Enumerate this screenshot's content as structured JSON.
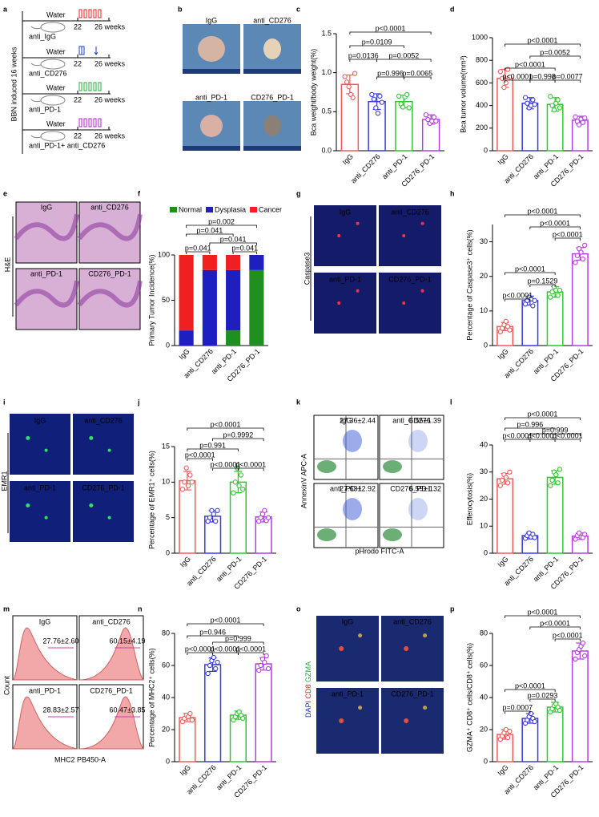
{
  "panel_labels": [
    "a",
    "b",
    "c",
    "d",
    "e",
    "f",
    "g",
    "h",
    "i",
    "j",
    "k",
    "l",
    "m",
    "n",
    "o",
    "p"
  ],
  "panel_a": {
    "ylabel": "BBN induced 16 weeks",
    "rows": [
      {
        "water": "Water",
        "start": "22",
        "end": "26 weeks",
        "treatment": "anti_IgG"
      },
      {
        "water": "Water",
        "start": "22",
        "end": "26 weeks",
        "treatment": "anti_CD276"
      },
      {
        "water": "Water",
        "start": "22",
        "end": "26 weeks",
        "treatment": "anti_PD-1"
      },
      {
        "water": "Water",
        "start": "22",
        "end": "26 weeks",
        "treatment": "anti_PD-1+ anti_CD276"
      }
    ]
  },
  "panel_b": {
    "groups": [
      "IgG",
      "anti_CD276",
      "anti_PD-1",
      "CD276_PD-1"
    ]
  },
  "panel_e": {
    "groups": [
      "IgG",
      "anti_CD276",
      "anti_PD-1",
      "CD276_PD-1"
    ],
    "stain": "H&E"
  },
  "panel_g": {
    "groups": [
      "IgG",
      "anti_CD276",
      "anti_PD-1",
      "CD276_PD-1"
    ],
    "stain": "Caspase3"
  },
  "panel_i": {
    "groups": [
      "IgG",
      "anti_CD276",
      "anti_PD-1",
      "CD276_PD-1"
    ],
    "stain": "EMR1"
  },
  "panel_k": {
    "groups": [
      "IgG",
      "anti_CD276",
      "anti_PD-1",
      "CD276_PD-1"
    ],
    "percentages": [
      "27.36±2.44",
      "6.55±1.39",
      "27.63±2.92",
      "6.59±1.32"
    ],
    "ylabel": "AnnexinV APC-A",
    "xlabel": "pHrodo FITC-A"
  },
  "panel_m": {
    "groups": [
      "IgG",
      "anti_CD276",
      "anti_PD-1",
      "CD276_PD-1"
    ],
    "percentages": [
      "27.76±2.60",
      "60.15±4.19",
      "28.83±2.57",
      "60.47±3.85"
    ],
    "ylabel": "Count",
    "xlabel": "MHC2 PB450-A"
  },
  "panel_o": {
    "groups": [
      "IgG",
      "anti_CD276",
      "anti_PD-1",
      "CD276_PD-1"
    ],
    "stains": [
      "DAPI",
      "CD8",
      "GZMA"
    ]
  },
  "chart_data": [
    {
      "type": "bar",
      "ylabel": "Bca weight/body weight(%)",
      "categories": [
        "IgG",
        "anti_CD276",
        "anti_PD-1",
        "CD276_PD-1"
      ],
      "values": [
        0.85,
        0.63,
        0.63,
        0.4
      ],
      "errors": [
        0.12,
        0.1,
        0.08,
        0.06
      ],
      "points": [
        [
          0.95,
          0.88,
          0.82,
          0.72,
          0.68,
          0.99
        ],
        [
          0.72,
          0.66,
          0.55,
          0.48,
          0.7,
          0.62
        ],
        [
          0.7,
          0.6,
          0.56,
          0.69,
          0.72,
          0.55
        ],
        [
          0.46,
          0.4,
          0.35,
          0.38,
          0.43,
          0.38
        ]
      ],
      "colors": [
        "#f05a5a",
        "#3a3adf",
        "#2fc62f",
        "#b43de0"
      ],
      "ylim": [
        0,
        1.5
      ],
      "yticks": [
        {
          "value": 0,
          "label": "0.0"
        },
        0.5,
        {
          "value": 1,
          "label": "1.0"
        },
        1.5
      ],
      "annotations": [
        "p=0.0136",
        "p=0.996",
        "p=0.0065",
        "p=0.0109",
        "p=0.0052",
        "p<0.0001"
      ]
    },
    {
      "type": "bar",
      "ylabel": "Bca tumor volume(mm³)",
      "categories": [
        "IgG",
        "anti_CD276",
        "anti_PD-1",
        "CD276_PD-1"
      ],
      "values": [
        640,
        420,
        410,
        270
      ],
      "errors": [
        80,
        50,
        60,
        35
      ],
      "points": [
        [
          700,
          640,
          560,
          600,
          720,
          650
        ],
        [
          470,
          420,
          380,
          400,
          450,
          410
        ],
        [
          480,
          400,
          360,
          420,
          450,
          380
        ],
        [
          300,
          260,
          230,
          280,
          250,
          290
        ]
      ],
      "colors": [
        "#f05a5a",
        "#3a3adf",
        "#2fc62f",
        "#b43de0"
      ],
      "ylim": [
        0,
        1000
      ],
      "yticks": [
        0,
        200,
        400,
        600,
        800,
        1000
      ],
      "annotations": [
        "p<0.0001",
        "p=0.998",
        "p=0.0077",
        "p<0.0001",
        "p=0.0052",
        "p<0.0001"
      ]
    },
    {
      "type": "stacked-bar",
      "ylabel": "Primary Tumor Incidence(%)",
      "categories": [
        "IgG",
        "anti_CD276",
        "anti_PD-1",
        "CD276_PD-1"
      ],
      "series": [
        {
          "name": "Normal",
          "color": "#1f8f1f",
          "values": [
            0,
            0,
            16.7,
            83.3
          ]
        },
        {
          "name": "Dysplasia",
          "color": "#1f1fbf",
          "values": [
            16.7,
            83.3,
            66.6,
            16.7
          ]
        },
        {
          "name": "Cancer",
          "color": "#f02020",
          "values": [
            83.3,
            16.7,
            16.7,
            0
          ]
        }
      ],
      "ylim": [
        0,
        100
      ],
      "yticks": [
        0,
        50,
        100
      ],
      "annotations": [
        "p=0.002",
        "p=0.041",
        "p=0.041",
        "p=0.041",
        "p=0.041"
      ]
    },
    {
      "type": "bar",
      "ylabel": "Percentage of Caspase3⁺ cells(%)",
      "categories": [
        "IgG",
        "anti_CD276",
        "anti_PD-1",
        "CD276_PD-1"
      ],
      "values": [
        5.5,
        13,
        15.5,
        26.5
      ],
      "errors": [
        1.2,
        1.3,
        1.5,
        1.8
      ],
      "points": [
        [
          4,
          5,
          6,
          7,
          5.5,
          4.5
        ],
        [
          12,
          13,
          14,
          13.5,
          11.5,
          13
        ],
        [
          14,
          15.5,
          17,
          16,
          14.5,
          16
        ],
        [
          24,
          26,
          28,
          27,
          25,
          29
        ]
      ],
      "colors": [
        "#f05a5a",
        "#3a3adf",
        "#2fc62f",
        "#b43de0"
      ],
      "ylim": [
        0,
        35
      ],
      "yticks": [
        0,
        10,
        20,
        30
      ],
      "annotations": [
        "p<0.0001",
        "p=0.1529",
        "p<0.0001",
        "p<0.0001",
        "p<0.0001",
        "p<0.0001"
      ]
    },
    {
      "type": "bar",
      "ylabel": "Percentage of EMR1⁺ cells(%)",
      "categories": [
        "IgG",
        "anti_CD276",
        "anti_PD-1",
        "CD276_PD-1"
      ],
      "values": [
        10.2,
        5.2,
        10,
        5.1
      ],
      "errors": [
        1.3,
        0.8,
        1.5,
        0.7
      ],
      "points": [
        [
          9,
          10,
          12,
          9.5,
          11,
          10
        ],
        [
          4.5,
          5,
          6,
          5.5,
          4.5,
          6
        ],
        [
          8.5,
          10,
          12,
          9.5,
          11,
          9
        ],
        [
          4.5,
          5,
          5.5,
          6,
          4.6,
          5
        ]
      ],
      "colors": [
        "#f05a5a",
        "#3a3adf",
        "#2fc62f",
        "#b43de0"
      ],
      "ylim": [
        0,
        15
      ],
      "yticks": [
        0,
        5,
        10,
        15
      ],
      "annotations": [
        "p<0.0001",
        "p<0.0001",
        "p<0.0001",
        "p=0.991",
        "p=0.9992",
        "p<0.0001"
      ]
    },
    {
      "type": "bar",
      "ylabel": "Efferocytosis(%)",
      "categories": [
        "IgG",
        "anti_CD276",
        "anti_PD-1",
        "CD276_PD-1"
      ],
      "values": [
        27.5,
        6.5,
        28,
        6.3
      ],
      "errors": [
        2,
        1.2,
        2.5,
        1.2
      ],
      "points": [
        [
          25,
          27,
          29,
          28,
          26,
          30
        ],
        [
          5.5,
          6.5,
          7.5,
          6,
          7,
          5.8
        ],
        [
          25,
          27,
          30,
          29,
          26,
          31
        ],
        [
          5.2,
          6.5,
          7.5,
          6,
          5.8,
          7
        ]
      ],
      "colors": [
        "#f05a5a",
        "#3a3adf",
        "#2fc62f",
        "#b43de0"
      ],
      "ylim": [
        0,
        40
      ],
      "yticks": [
        0,
        10,
        20,
        30,
        40
      ],
      "annotations": [
        "p<0.0001",
        "p<0.0001",
        "p<0.0001",
        "p=0.996",
        "p=0.999",
        "p<0.0001"
      ]
    },
    {
      "type": "bar",
      "ylabel": "Percentage of MHC2⁺ cells(%)",
      "categories": [
        "IgG",
        "anti_CD276",
        "anti_PD-1",
        "CD276_PD-1"
      ],
      "values": [
        27.5,
        60.5,
        29,
        61
      ],
      "errors": [
        2.6,
        4.2,
        2.6,
        3.9
      ],
      "points": [
        [
          25,
          27,
          29,
          28,
          30,
          26
        ],
        [
          55,
          60,
          63,
          65,
          58,
          62
        ],
        [
          26,
          28,
          30,
          31,
          29,
          27
        ],
        [
          57,
          60,
          64,
          62,
          66,
          58
        ]
      ],
      "colors": [
        "#f05a5a",
        "#3a3adf",
        "#2fc62f",
        "#b43de0"
      ],
      "ylim": [
        0,
        80
      ],
      "yticks": [
        0,
        20,
        40,
        60,
        80
      ],
      "annotations": [
        "p<0.0001",
        "p<0.0001",
        "p<0.0001",
        "p=0.946",
        "p=0.999",
        "p<0.0001"
      ]
    },
    {
      "type": "bar",
      "ylabel": "GZMA⁺ CD8⁺ cells/CD8⁺ cells(%)",
      "categories": [
        "IgG",
        "anti_CD276",
        "anti_PD-1",
        "CD276_PD-1"
      ],
      "values": [
        17,
        27,
        34,
        69
      ],
      "errors": [
        3,
        3,
        3,
        5
      ],
      "points": [
        [
          14,
          16,
          18,
          20,
          15,
          19
        ],
        [
          24,
          26,
          28,
          30,
          27,
          25
        ],
        [
          31,
          33,
          35,
          36,
          34,
          32
        ],
        [
          64,
          68,
          70,
          72,
          74,
          66
        ]
      ],
      "colors": [
        "#f05a5a",
        "#3a3adf",
        "#2fc62f",
        "#b43de0"
      ],
      "ylim": [
        0,
        80
      ],
      "yticks": [
        0,
        20,
        40,
        60,
        80
      ],
      "annotations": [
        "p=0.0007",
        "p=0.0293",
        "p<0.0001",
        "p<0.0001",
        "p<0.0001",
        "p<0.0001"
      ]
    }
  ]
}
